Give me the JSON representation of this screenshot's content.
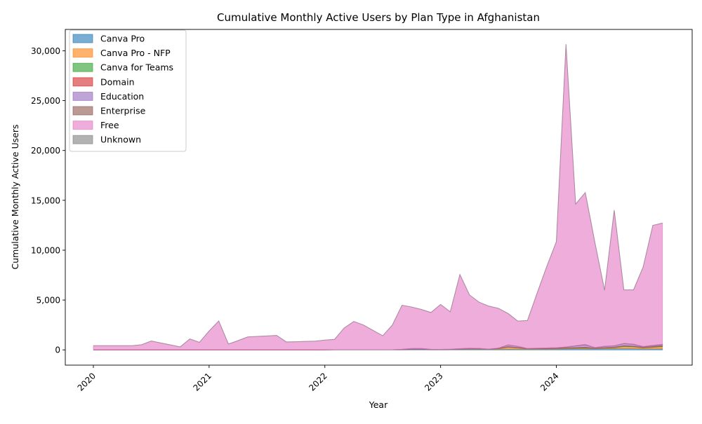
{
  "chart_data": {
    "type": "area",
    "stacked": true,
    "title": "Cumulative Monthly Active Users by Plan Type in Afghanistan",
    "xlabel": "Year",
    "ylabel": "Cumulative Monthly Active Users",
    "x": [
      "2020-01",
      "2020-02",
      "2020-03",
      "2020-04",
      "2020-05",
      "2020-06",
      "2020-07",
      "2020-08",
      "2020-09",
      "2020-10",
      "2020-11",
      "2020-12",
      "2021-01",
      "2021-02",
      "2021-03",
      "2021-04",
      "2021-05",
      "2021-06",
      "2021-07",
      "2021-08",
      "2021-09",
      "2021-10",
      "2021-11",
      "2021-12",
      "2022-01",
      "2022-02",
      "2022-03",
      "2022-04",
      "2022-05",
      "2022-06",
      "2022-07",
      "2022-08",
      "2022-09",
      "2022-10",
      "2022-11",
      "2022-12",
      "2023-01",
      "2023-02",
      "2023-03",
      "2023-04",
      "2023-05",
      "2023-06",
      "2023-07",
      "2023-08",
      "2023-09",
      "2023-10",
      "2023-11",
      "2023-12",
      "2024-01",
      "2024-02",
      "2024-03",
      "2024-04",
      "2024-05",
      "2024-06",
      "2024-07",
      "2024-08",
      "2024-09",
      "2024-10",
      "2024-11",
      "2024-12"
    ],
    "x_ticks": [
      {
        "x": "2020-01",
        "label": "2020"
      },
      {
        "x": "2021-01",
        "label": "2021"
      },
      {
        "x": "2022-01",
        "label": "2022"
      },
      {
        "x": "2023-01",
        "label": "2023"
      },
      {
        "x": "2024-01",
        "label": "2024"
      }
    ],
    "ylim": [
      -1530,
      32140
    ],
    "y_ticks": [
      0,
      5000,
      10000,
      15000,
      20000,
      25000,
      30000
    ],
    "y_tick_labels": [
      "0",
      "5,000",
      "10,000",
      "15,000",
      "20,000",
      "25,000",
      "30,000"
    ],
    "grid": false,
    "legend_position": "upper left",
    "series": [
      {
        "name": "Canva Pro",
        "color": "#1f77b4",
        "values": [
          0,
          0,
          0,
          0,
          0,
          0,
          0,
          0,
          0,
          0,
          0,
          0,
          0,
          0,
          0,
          0,
          0,
          0,
          0,
          0,
          0,
          0,
          0,
          0,
          10,
          20,
          20,
          20,
          20,
          20,
          20,
          20,
          30,
          40,
          40,
          30,
          30,
          30,
          40,
          50,
          50,
          40,
          60,
          80,
          70,
          60,
          60,
          70,
          80,
          100,
          110,
          120,
          100,
          120,
          140,
          150,
          130,
          100,
          100,
          110
        ]
      },
      {
        "name": "Canva Pro - NFP",
        "color": "#ff7f0e",
        "values": [
          0,
          0,
          0,
          0,
          0,
          0,
          0,
          0,
          0,
          0,
          0,
          0,
          0,
          0,
          0,
          0,
          0,
          0,
          0,
          0,
          0,
          0,
          0,
          0,
          0,
          0,
          0,
          0,
          0,
          0,
          0,
          0,
          0,
          10,
          20,
          10,
          10,
          20,
          30,
          40,
          40,
          20,
          60,
          180,
          120,
          40,
          50,
          40,
          50,
          50,
          60,
          70,
          40,
          60,
          80,
          180,
          170,
          100,
          150,
          200
        ]
      },
      {
        "name": "Canva for Teams",
        "color": "#2ca02c",
        "values": [
          0,
          0,
          0,
          0,
          0,
          0,
          0,
          0,
          0,
          0,
          0,
          0,
          0,
          0,
          0,
          0,
          0,
          0,
          0,
          0,
          0,
          0,
          0,
          0,
          0,
          0,
          0,
          0,
          0,
          0,
          0,
          0,
          0,
          0,
          0,
          0,
          0,
          0,
          10,
          20,
          20,
          10,
          20,
          40,
          30,
          20,
          20,
          20,
          20,
          30,
          40,
          50,
          20,
          30,
          40,
          60,
          50,
          40,
          50,
          60
        ]
      },
      {
        "name": "Domain",
        "color": "#d62728",
        "values": [
          0,
          0,
          0,
          0,
          0,
          0,
          0,
          0,
          0,
          0,
          0,
          0,
          0,
          0,
          0,
          0,
          0,
          0,
          0,
          0,
          0,
          0,
          0,
          0,
          0,
          0,
          0,
          0,
          0,
          0,
          0,
          0,
          0,
          0,
          0,
          0,
          0,
          0,
          0,
          0,
          0,
          0,
          10,
          20,
          20,
          10,
          10,
          10,
          10,
          20,
          20,
          30,
          10,
          20,
          20,
          30,
          30,
          20,
          30,
          40
        ]
      },
      {
        "name": "Education",
        "color": "#9467bd",
        "values": [
          0,
          0,
          0,
          0,
          0,
          0,
          0,
          0,
          0,
          0,
          0,
          0,
          0,
          0,
          0,
          0,
          0,
          0,
          0,
          0,
          0,
          0,
          0,
          0,
          0,
          0,
          0,
          0,
          0,
          0,
          0,
          0,
          30,
          90,
          80,
          20,
          10,
          20,
          40,
          60,
          40,
          10,
          20,
          170,
          110,
          10,
          30,
          40,
          50,
          80,
          160,
          230,
          60,
          120,
          120,
          200,
          170,
          60,
          100,
          110
        ]
      },
      {
        "name": "Enterprise",
        "color": "#8c564b",
        "values": [
          0,
          0,
          0,
          0,
          0,
          0,
          0,
          0,
          0,
          0,
          0,
          0,
          0,
          0,
          0,
          0,
          0,
          0,
          0,
          0,
          0,
          0,
          0,
          0,
          0,
          0,
          0,
          0,
          0,
          0,
          0,
          0,
          0,
          0,
          0,
          0,
          0,
          0,
          0,
          0,
          0,
          0,
          10,
          20,
          10,
          0,
          0,
          10,
          10,
          20,
          30,
          40,
          10,
          20,
          20,
          30,
          30,
          20,
          30,
          40
        ]
      },
      {
        "name": "Free",
        "color": "#e377c2",
        "values": [
          420,
          420,
          420,
          420,
          420,
          520,
          890,
          690,
          500,
          300,
          1100,
          760,
          1900,
          2900,
          590,
          930,
          1300,
          1350,
          1400,
          1450,
          800,
          820,
          850,
          880,
          970,
          1030,
          2180,
          2830,
          2480,
          1930,
          1400,
          2480,
          4420,
          4160,
          3920,
          3690,
          4510,
          3750,
          7440,
          5340,
          4630,
          4310,
          3990,
          3140,
          2530,
          2800,
          5510,
          8160,
          10630,
          30350,
          14200,
          15240,
          10520,
          5620,
          13600,
          5370,
          5440,
          7980,
          12020,
          12160
        ]
      },
      {
        "name": "Unknown",
        "color": "#7f7f7f",
        "values": [
          0,
          0,
          0,
          0,
          0,
          0,
          0,
          0,
          0,
          0,
          0,
          0,
          0,
          0,
          0,
          0,
          0,
          0,
          0,
          0,
          0,
          0,
          0,
          0,
          0,
          0,
          0,
          0,
          0,
          0,
          0,
          0,
          0,
          0,
          0,
          0,
          0,
          0,
          0,
          0,
          0,
          0,
          0,
          0,
          0,
          0,
          0,
          0,
          0,
          0,
          0,
          0,
          0,
          0,
          0,
          0,
          0,
          0,
          0,
          0
        ]
      }
    ]
  }
}
